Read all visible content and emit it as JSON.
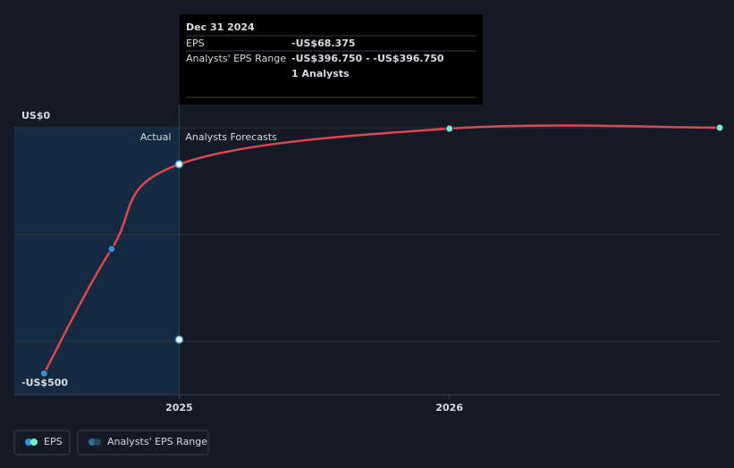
{
  "chart_data": {
    "type": "line",
    "x": [
      2024.5,
      2024.75,
      2025,
      2026,
      2027
    ],
    "series": [
      {
        "name": "EPS",
        "color": "#e0464e",
        "values": [
          -460,
          -227,
          -68.375,
          -1.7,
          0
        ]
      },
      {
        "name": "Analysts' EPS Range",
        "color": "#2f6f8f",
        "x": [
          2025
        ],
        "values": [
          -396.75
        ]
      }
    ],
    "xlim": [
      2024.39,
      2027
    ],
    "xticks": [
      2025,
      2026
    ],
    "ylim": [
      -500,
      0
    ],
    "yticks": [
      {
        "value": 0,
        "label": "US$0"
      },
      {
        "value": -500,
        "label": "-US$500"
      }
    ],
    "ygrid": [
      0,
      -200,
      -400
    ],
    "divider": 2025,
    "region_labels": {
      "actual": "Actual",
      "forecast": "Analysts Forecasts"
    },
    "tooltip": {
      "title": "Dec 31 2024",
      "rows": [
        [
          "EPS",
          "-US$68.375"
        ],
        [
          "Analysts' EPS Range",
          "-US$396.750 - -US$396.750"
        ]
      ],
      "note": "1 Analysts"
    },
    "legend": "bottom-left"
  }
}
